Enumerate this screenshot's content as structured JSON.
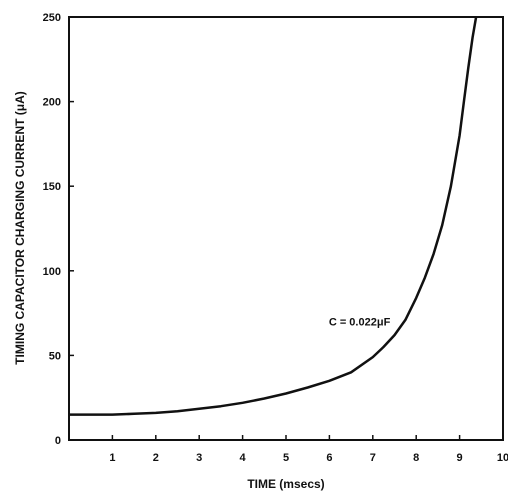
{
  "chart_data": {
    "type": "line",
    "title": "",
    "xlabel": "TIME (msecs)",
    "ylabel": "TIMING CAPACITOR CHARGING CURRENT (μA)",
    "xlim": [
      0,
      10
    ],
    "ylim": [
      0,
      250
    ],
    "x_ticks": [
      1,
      2,
      3,
      4,
      5,
      6,
      7,
      8,
      9,
      10
    ],
    "y_ticks": [
      0,
      50,
      100,
      150,
      200,
      250
    ],
    "grid": false,
    "legend": "none",
    "series": [
      {
        "x": [
          0,
          0.5,
          1,
          1.5,
          2,
          2.5,
          3,
          3.5,
          4,
          4.5,
          5,
          5.5,
          6,
          6.5,
          7,
          7.25,
          7.5,
          7.75,
          8,
          8.2,
          8.4,
          8.6,
          8.8,
          9,
          9.1,
          9.2,
          9.3,
          9.38
        ],
        "values": [
          15,
          15,
          15,
          15.5,
          16,
          17,
          18.5,
          20,
          22,
          24.5,
          27.5,
          31,
          35,
          40,
          49,
          55,
          62,
          71,
          84,
          96,
          110,
          127,
          150,
          180,
          200,
          220,
          238,
          250
        ]
      }
    ],
    "annotations": [
      {
        "text": "C = 0.022μF",
        "x": 7.6,
        "y": 70
      }
    ],
    "colors": {
      "line": "#111111",
      "axis": "#111111",
      "background": "#ffffff"
    }
  }
}
